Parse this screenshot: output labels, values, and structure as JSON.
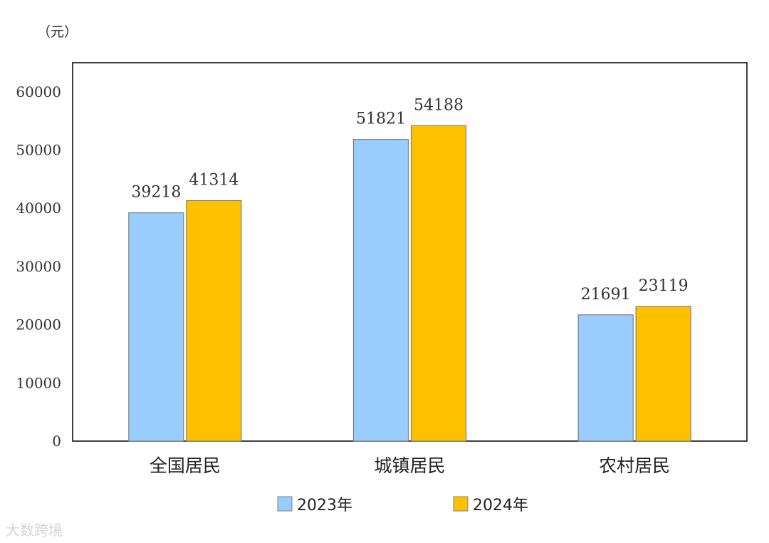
{
  "unit": "（元）",
  "watermark": "大数跨境",
  "chart_data": {
    "type": "bar",
    "title": "",
    "xlabel": "",
    "ylabel": "（元）",
    "categories": [
      "全国居民",
      "城镇居民",
      "农村居民"
    ],
    "series": [
      {
        "name": "2023年",
        "values": [
          39218,
          51821,
          21691
        ],
        "color": "#99ccff"
      },
      {
        "name": "2024年",
        "values": [
          41314,
          54188,
          23119
        ],
        "color": "#ffc000"
      }
    ],
    "ylim": [
      0,
      65000
    ],
    "yticks": [
      0,
      10000,
      20000,
      30000,
      40000,
      50000,
      60000
    ],
    "ytick_labels": [
      "0",
      "10000",
      "20000",
      "30000",
      "40000",
      "50000",
      "60000"
    ],
    "grid": false,
    "legend": "bottom"
  }
}
